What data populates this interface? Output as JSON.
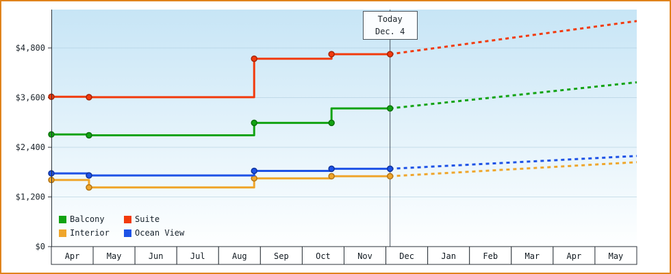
{
  "chart_data": {
    "type": "line",
    "title": "",
    "y_unit": "USD",
    "x_categories": [
      "Apr",
      "May",
      "Jun",
      "Jul",
      "Aug",
      "Sep",
      "Oct",
      "Nov",
      "Dec",
      "Jan",
      "Feb",
      "Mar",
      "Apr",
      "May"
    ],
    "y_ticks": [
      {
        "label": "$0",
        "value": 0
      },
      {
        "label": "$1,200",
        "value": 1200
      },
      {
        "label": "$2,400",
        "value": 2400
      },
      {
        "label": "$3,600",
        "value": 3600
      },
      {
        "label": "$4,800",
        "value": 4800
      }
    ],
    "ylim": [
      0,
      5750
    ],
    "grid": true,
    "legend_position": "bottom-left",
    "today": {
      "line1": "Today",
      "line2": "Dec. 4",
      "month_offset": 8.1
    },
    "series": [
      {
        "name": "Balcony",
        "color": "#12a312",
        "marker_stroke": "#0b700b",
        "history": [
          [
            0,
            2710
          ],
          [
            0.9,
            2710
          ],
          [
            0.9,
            2690
          ],
          [
            4.85,
            2690
          ],
          [
            4.85,
            2990
          ],
          [
            6.7,
            2990
          ],
          [
            6.7,
            3340
          ],
          [
            8.1,
            3340
          ]
        ],
        "markers": [
          [
            0,
            2710
          ],
          [
            0.9,
            2690
          ],
          [
            4.85,
            2990
          ],
          [
            6.7,
            2990
          ],
          [
            8.1,
            3340
          ]
        ],
        "forecast": [
          [
            8.1,
            3340
          ],
          [
            14,
            3970
          ]
        ]
      },
      {
        "name": "Suite",
        "color": "#f23a0c",
        "marker_stroke": "#a32407",
        "history": [
          [
            0,
            3620
          ],
          [
            0.9,
            3620
          ],
          [
            0.9,
            3610
          ],
          [
            4.85,
            3610
          ],
          [
            4.85,
            4540
          ],
          [
            6.7,
            4540
          ],
          [
            6.7,
            4650
          ],
          [
            8.1,
            4650
          ]
        ],
        "markers": [
          [
            0,
            3620
          ],
          [
            0.9,
            3610
          ],
          [
            4.85,
            4540
          ],
          [
            6.7,
            4650
          ],
          [
            8.1,
            4650
          ]
        ],
        "forecast": [
          [
            8.1,
            4650
          ],
          [
            14,
            5450
          ]
        ]
      },
      {
        "name": "Interior",
        "color": "#efa62c",
        "marker_stroke": "#b37413",
        "history": [
          [
            0,
            1610
          ],
          [
            0.9,
            1610
          ],
          [
            0.9,
            1430
          ],
          [
            4.85,
            1430
          ],
          [
            4.85,
            1650
          ],
          [
            6.7,
            1650
          ],
          [
            6.7,
            1700
          ],
          [
            8.1,
            1700
          ]
        ],
        "markers": [
          [
            0,
            1610
          ],
          [
            0.9,
            1430
          ],
          [
            4.85,
            1650
          ],
          [
            6.7,
            1700
          ],
          [
            8.1,
            1700
          ]
        ],
        "forecast": [
          [
            8.1,
            1700
          ],
          [
            14,
            2040
          ]
        ]
      },
      {
        "name": "Ocean View",
        "color": "#1d52e6",
        "marker_stroke": "#10339b",
        "history": [
          [
            0,
            1770
          ],
          [
            0.9,
            1770
          ],
          [
            0.9,
            1720
          ],
          [
            4.85,
            1720
          ],
          [
            4.85,
            1830
          ],
          [
            6.7,
            1830
          ],
          [
            6.7,
            1880
          ],
          [
            8.1,
            1880
          ]
        ],
        "markers": [
          [
            0,
            1770
          ],
          [
            0.9,
            1720
          ],
          [
            4.85,
            1830
          ],
          [
            6.7,
            1880
          ],
          [
            8.1,
            1880
          ]
        ],
        "forecast": [
          [
            8.1,
            1880
          ],
          [
            14,
            2190
          ]
        ]
      }
    ],
    "colors": {
      "plot_gradient_top": "#c7e5f6",
      "plot_gradient_bottom": "#feffff",
      "gridline": "#a9c7da",
      "axis": "#2b3238",
      "frame_border": "#e0831c"
    }
  }
}
